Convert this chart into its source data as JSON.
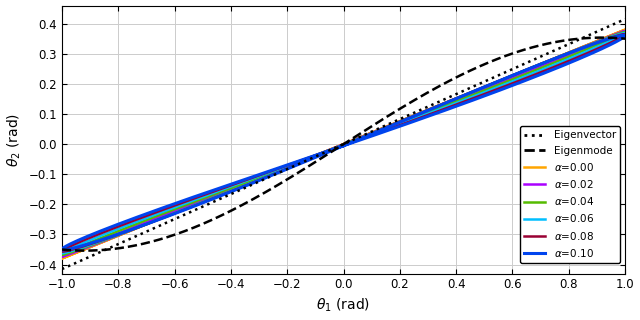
{
  "xlabel": "$\\theta_1$ (rad)",
  "ylabel": "$\\theta_2$ (rad)",
  "xlim": [
    -1.0,
    1.0
  ],
  "ylim": [
    -0.43,
    0.46
  ],
  "xticks": [
    -1.0,
    -0.8,
    -0.6,
    -0.4,
    -0.2,
    0.0,
    0.2,
    0.4,
    0.6,
    0.8,
    1.0
  ],
  "yticks": [
    -0.4,
    -0.3,
    -0.2,
    -0.1,
    0.0,
    0.1,
    0.2,
    0.3,
    0.4
  ],
  "line_colors": [
    "black",
    "black",
    "#FFA500",
    "#AA00FF",
    "#55BB00",
    "#00BFFF",
    "#990033",
    "#0044EE"
  ],
  "line_styles": [
    "dotted",
    "dashed",
    "solid",
    "solid",
    "solid",
    "solid",
    "solid",
    "solid"
  ],
  "line_widths": [
    1.8,
    1.8,
    1.8,
    1.8,
    1.8,
    1.8,
    1.8,
    2.2
  ],
  "eigenvector_slope": 0.415,
  "background_color": "#ffffff",
  "grid_color": "#cccccc",
  "figsize": [
    6.4,
    3.2
  ],
  "dpi": 100
}
